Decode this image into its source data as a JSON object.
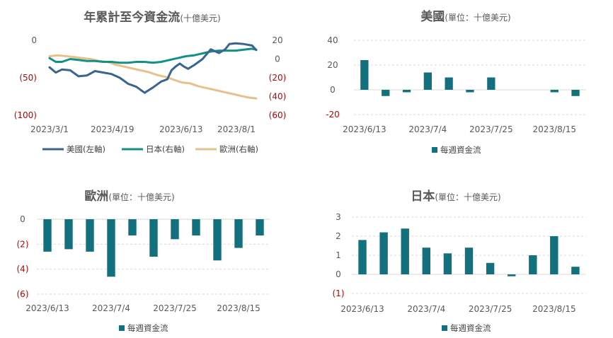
{
  "colors": {
    "us": "#3a6491",
    "japan": "#129088",
    "europe": "#e8c18a",
    "bar": "#13707f",
    "negative_tick": "#c00000",
    "tick": "#595959"
  },
  "chart_data": [
    {
      "id": "cumulative",
      "type": "line",
      "title": "年累計至今資金流",
      "subtitle": "(十億美元)",
      "x_ticks": [
        "2023/3/1",
        "2023/4/19",
        "2023/6/13",
        "2023/8/1"
      ],
      "x_range": [
        0,
        100
      ],
      "x_tick_pos": [
        0,
        30.4,
        63.6,
        90.4
      ],
      "y_left": {
        "ticks": [
          0,
          -50,
          -100
        ],
        "tick_labels": [
          "0",
          "(50)",
          "(100)"
        ],
        "range": [
          -100,
          0
        ]
      },
      "y_right": {
        "ticks": [
          20,
          0,
          -20,
          -40,
          -60
        ],
        "tick_labels": [
          "20",
          "0",
          "(20)",
          "(40)",
          "(60)"
        ],
        "range": [
          -60,
          20
        ]
      },
      "series": [
        {
          "name": "美國(左軸)",
          "axis": "left",
          "color_key": "us",
          "x": [
            0,
            3,
            6,
            10,
            14,
            18,
            22,
            26,
            30,
            34,
            38,
            42,
            46,
            50,
            54,
            57,
            59,
            61,
            63,
            65,
            67,
            70,
            74,
            78,
            82,
            85,
            87,
            90,
            94,
            98,
            100
          ],
          "y": [
            -36,
            -43,
            -39,
            -40,
            -48,
            -47,
            -41,
            -43,
            -45,
            -50,
            -58,
            -62,
            -70,
            -63,
            -55,
            -52,
            -40,
            -35,
            -31,
            -35,
            -38,
            -33,
            -25,
            -12,
            -17,
            -12,
            -5,
            -4,
            -5,
            -7,
            -13
          ]
        },
        {
          "name": "日本(右軸)",
          "axis": "right",
          "color_key": "japan",
          "x": [
            0,
            3,
            6,
            10,
            14,
            18,
            22,
            26,
            30,
            34,
            38,
            42,
            46,
            50,
            54,
            58,
            62,
            66,
            70,
            74,
            78,
            82,
            86,
            90,
            94,
            98,
            100
          ],
          "y": [
            1,
            -3,
            -3,
            0,
            -1,
            -2,
            -2,
            -3,
            -3,
            -4,
            -4,
            -3,
            -3,
            -4,
            -3,
            -1,
            1,
            3,
            4,
            6,
            8,
            9,
            9,
            9,
            10,
            11,
            10
          ]
        },
        {
          "name": "歐洲(右軸)",
          "axis": "right",
          "color_key": "europe",
          "x": [
            0,
            4,
            8,
            12,
            16,
            20,
            24,
            28,
            32,
            36,
            40,
            44,
            48,
            52,
            56,
            60,
            64,
            68,
            72,
            76,
            80,
            84,
            88,
            92,
            96,
            100
          ],
          "y": [
            3,
            4,
            3,
            2,
            1,
            0,
            -2,
            -3,
            -6,
            -8,
            -10,
            -12,
            -14,
            -17,
            -19,
            -22,
            -25,
            -26,
            -29,
            -31,
            -33,
            -35,
            -37,
            -39,
            -41,
            -42
          ]
        }
      ]
    },
    {
      "id": "us",
      "type": "bar",
      "title": "美國",
      "subtitle": "(單位：十億美元)",
      "series_name": "每週資金流",
      "x_tick_labels": [
        "2023/6/13",
        "2023/7/4",
        "2023/7/25",
        "2023/8/15"
      ],
      "x_tick_index": [
        0,
        3,
        6,
        9
      ],
      "values": [
        24,
        -5,
        -2,
        14,
        10,
        -2,
        10,
        0,
        0,
        -2,
        -5
      ],
      "y_ticks": [
        40,
        20,
        0,
        -20
      ],
      "y_tick_labels": [
        "40",
        "20",
        "0",
        "-20"
      ],
      "ylim": [
        -20,
        40
      ]
    },
    {
      "id": "europe",
      "type": "bar",
      "title": "歐洲",
      "subtitle": "(單位：十億美元)",
      "series_name": "每週資金流",
      "x_tick_labels": [
        "2023/6/13",
        "2023/7/4",
        "2023/7/25",
        "2023/8/15"
      ],
      "x_tick_index": [
        0,
        3,
        6,
        9
      ],
      "values": [
        -2.6,
        -2.4,
        -2.6,
        -4.6,
        -1.3,
        -3.0,
        -1.6,
        -1.3,
        -3.3,
        -2.3,
        -1.3
      ],
      "y_ticks": [
        0,
        -2,
        -4,
        -6
      ],
      "y_tick_labels": [
        "0",
        "(2)",
        "(4)",
        "(6)"
      ],
      "ylim": [
        -6,
        0
      ]
    },
    {
      "id": "japan",
      "type": "bar",
      "title": "日本",
      "subtitle": "(單位：十億美元)",
      "series_name": "每週資金流",
      "x_tick_labels": [
        "2023/6/13",
        "2023/7/4",
        "2023/7/25",
        "2023/8/15"
      ],
      "x_tick_index": [
        0,
        3,
        6,
        9
      ],
      "values": [
        1.8,
        2.2,
        2.4,
        1.4,
        1.1,
        1.4,
        0.6,
        -0.1,
        1.0,
        2.0,
        0.4
      ],
      "y_ticks": [
        3,
        2,
        1,
        0,
        -1
      ],
      "y_tick_labels": [
        "3",
        "2",
        "1",
        "0",
        "(1)"
      ],
      "ylim": [
        -1,
        3
      ]
    }
  ]
}
